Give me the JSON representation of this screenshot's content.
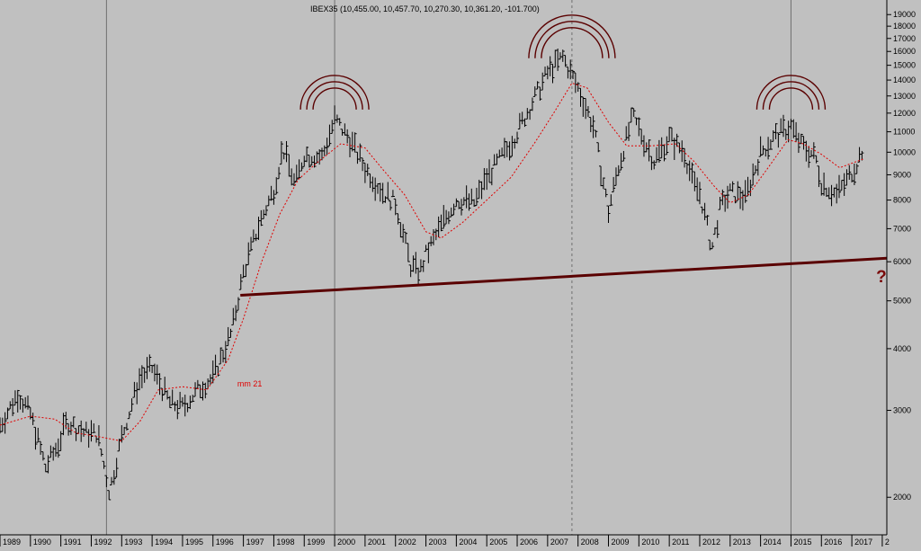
{
  "colors": {
    "background": "#c0c0c0",
    "price_bars": "#000000",
    "moving_average": "#e00000",
    "support_line": "#5a0000",
    "arcs": "#5a0000",
    "question_mark": "#7a0a0a",
    "vertical_lines": "#707070",
    "axis_text": "#000000"
  },
  "chart_data": {
    "type": "ohlc",
    "title": "IBEX35 (10,455.00, 10,457.70, 10,270.30, 10,361.20, -101.700)",
    "y_scale": "log",
    "ylim": [
      1700,
      20000
    ],
    "xlim": [
      1989.0,
      2018.15
    ],
    "x_ticks": [
      "1989",
      "1990",
      "1991",
      "1992",
      "1993",
      "1994",
      "1995",
      "1996",
      "1997",
      "1998",
      "1999",
      "2000",
      "2001",
      "2002",
      "2003",
      "2004",
      "2005",
      "2006",
      "2007",
      "2008",
      "2009",
      "2010",
      "2011",
      "2012",
      "2013",
      "2014",
      "2015",
      "2016",
      "2017",
      "2"
    ],
    "y_ticks": [
      2000,
      3000,
      4000,
      5000,
      6000,
      7000,
      8000,
      9000,
      10000,
      11000,
      12000,
      13000,
      14000,
      15000,
      16000,
      17000,
      18000,
      19000
    ],
    "y_tick_labels": [
      "2000",
      "3000",
      "4000",
      "5000",
      "6000",
      "7000",
      "8000",
      "9000",
      "10000",
      "11000",
      "12000",
      "13000",
      "14000",
      "15000",
      "16000",
      "17000",
      "18000",
      "19000"
    ],
    "series": [
      {
        "type": "ohlc",
        "anchors": [
          {
            "x": 1989.0,
            "y": 2800
          },
          {
            "x": 1989.6,
            "y": 3250
          },
          {
            "x": 1990.0,
            "y": 2950
          },
          {
            "x": 1990.5,
            "y": 2300
          },
          {
            "x": 1990.9,
            "y": 2550
          },
          {
            "x": 1991.2,
            "y": 2850
          },
          {
            "x": 1991.8,
            "y": 2700
          },
          {
            "x": 1992.2,
            "y": 2700
          },
          {
            "x": 1992.6,
            "y": 2050
          },
          {
            "x": 1993.0,
            "y": 2650
          },
          {
            "x": 1993.6,
            "y": 3500
          },
          {
            "x": 1994.0,
            "y": 3650
          },
          {
            "x": 1994.6,
            "y": 3100
          },
          {
            "x": 1995.0,
            "y": 3050
          },
          {
            "x": 1995.6,
            "y": 3350
          },
          {
            "x": 1996.0,
            "y": 3500
          },
          {
            "x": 1996.6,
            "y": 4300
          },
          {
            "x": 1997.0,
            "y": 5700
          },
          {
            "x": 1997.5,
            "y": 7100
          },
          {
            "x": 1998.0,
            "y": 8400
          },
          {
            "x": 1998.3,
            "y": 10200
          },
          {
            "x": 1998.7,
            "y": 8600
          },
          {
            "x": 1999.0,
            "y": 9900
          },
          {
            "x": 1999.6,
            "y": 9800
          },
          {
            "x": 2000.0,
            "y": 11700
          },
          {
            "x": 2000.5,
            "y": 10600
          },
          {
            "x": 2001.0,
            "y": 9300
          },
          {
            "x": 2001.6,
            "y": 8300
          },
          {
            "x": 2002.0,
            "y": 7900
          },
          {
            "x": 2002.5,
            "y": 5900
          },
          {
            "x": 2002.8,
            "y": 5700
          },
          {
            "x": 2003.0,
            "y": 6200
          },
          {
            "x": 2003.6,
            "y": 7300
          },
          {
            "x": 2004.0,
            "y": 8000
          },
          {
            "x": 2004.6,
            "y": 7900
          },
          {
            "x": 2005.0,
            "y": 8900
          },
          {
            "x": 2005.6,
            "y": 10000
          },
          {
            "x": 2006.0,
            "y": 11000
          },
          {
            "x": 2006.6,
            "y": 13000
          },
          {
            "x": 2007.0,
            "y": 14500
          },
          {
            "x": 2007.5,
            "y": 15600
          },
          {
            "x": 2008.0,
            "y": 13500
          },
          {
            "x": 2008.5,
            "y": 11300
          },
          {
            "x": 2009.0,
            "y": 7600
          },
          {
            "x": 2009.3,
            "y": 9200
          },
          {
            "x": 2009.8,
            "y": 11800
          },
          {
            "x": 2010.2,
            "y": 10500
          },
          {
            "x": 2010.5,
            "y": 9600
          },
          {
            "x": 2011.0,
            "y": 10700
          },
          {
            "x": 2011.5,
            "y": 10000
          },
          {
            "x": 2011.8,
            "y": 8600
          },
          {
            "x": 2012.0,
            "y": 8300
          },
          {
            "x": 2012.4,
            "y": 6400
          },
          {
            "x": 2012.7,
            "y": 7800
          },
          {
            "x": 2013.0,
            "y": 8300
          },
          {
            "x": 2013.5,
            "y": 8100
          },
          {
            "x": 2014.0,
            "y": 10000
          },
          {
            "x": 2014.5,
            "y": 10800
          },
          {
            "x": 2015.0,
            "y": 11300
          },
          {
            "x": 2015.3,
            "y": 10400
          },
          {
            "x": 2015.8,
            "y": 9800
          },
          {
            "x": 2016.0,
            "y": 8700
          },
          {
            "x": 2016.5,
            "y": 8200
          },
          {
            "x": 2016.9,
            "y": 8900
          },
          {
            "x": 2017.2,
            "y": 9600
          },
          {
            "x": 2017.4,
            "y": 10360
          }
        ]
      },
      {
        "name": "mm 21",
        "type": "line",
        "style": "dotted",
        "points": [
          {
            "x": 1989.0,
            "y": 2800
          },
          {
            "x": 1990.0,
            "y": 2920
          },
          {
            "x": 1990.8,
            "y": 2880
          },
          {
            "x": 1991.5,
            "y": 2700
          },
          {
            "x": 1992.3,
            "y": 2650
          },
          {
            "x": 1993.0,
            "y": 2600
          },
          {
            "x": 1993.6,
            "y": 2850
          },
          {
            "x": 1994.2,
            "y": 3300
          },
          {
            "x": 1995.0,
            "y": 3350
          },
          {
            "x": 1995.8,
            "y": 3300
          },
          {
            "x": 1996.5,
            "y": 3800
          },
          {
            "x": 1997.0,
            "y": 4600
          },
          {
            "x": 1997.6,
            "y": 6000
          },
          {
            "x": 1998.2,
            "y": 7500
          },
          {
            "x": 1998.8,
            "y": 8800
          },
          {
            "x": 1999.4,
            "y": 9500
          },
          {
            "x": 2000.2,
            "y": 10400
          },
          {
            "x": 2001.0,
            "y": 10200
          },
          {
            "x": 2001.6,
            "y": 9200
          },
          {
            "x": 2002.3,
            "y": 8200
          },
          {
            "x": 2003.0,
            "y": 6900
          },
          {
            "x": 2003.5,
            "y": 6700
          },
          {
            "x": 2004.2,
            "y": 7200
          },
          {
            "x": 2005.0,
            "y": 8000
          },
          {
            "x": 2005.8,
            "y": 8900
          },
          {
            "x": 2006.6,
            "y": 10500
          },
          {
            "x": 2007.2,
            "y": 12000
          },
          {
            "x": 2007.8,
            "y": 13800
          },
          {
            "x": 2008.3,
            "y": 13500
          },
          {
            "x": 2009.0,
            "y": 11500
          },
          {
            "x": 2009.6,
            "y": 10300
          },
          {
            "x": 2010.4,
            "y": 10300
          },
          {
            "x": 2011.2,
            "y": 10400
          },
          {
            "x": 2011.8,
            "y": 9600
          },
          {
            "x": 2012.5,
            "y": 8500
          },
          {
            "x": 2013.0,
            "y": 7900
          },
          {
            "x": 2013.6,
            "y": 8200
          },
          {
            "x": 2014.3,
            "y": 9400
          },
          {
            "x": 2014.9,
            "y": 10600
          },
          {
            "x": 2015.4,
            "y": 10400
          },
          {
            "x": 2016.0,
            "y": 9900
          },
          {
            "x": 2016.6,
            "y": 9300
          },
          {
            "x": 2017.0,
            "y": 9500
          },
          {
            "x": 2017.4,
            "y": 9700
          }
        ]
      }
    ],
    "support_line": [
      {
        "x": 1996.9,
        "y": 5130
      },
      {
        "x": 2018.15,
        "y": 6100
      }
    ],
    "vertical_lines": [
      {
        "x": 1992.5,
        "style": "solid"
      },
      {
        "x": 2000.0,
        "style": "solid"
      },
      {
        "x": 2007.8,
        "style": "dashed"
      },
      {
        "x": 2015.0,
        "style": "solid"
      }
    ],
    "arc_groups": [
      {
        "x": 2000.0,
        "y": 12200
      },
      {
        "x": 2007.8,
        "y": 15500
      },
      {
        "x": 2015.0,
        "y": 12200
      }
    ],
    "annotations": [
      {
        "text": "mm 21",
        "x": 1996.8,
        "y": 3350
      },
      {
        "text": "?",
        "x": 2017.8,
        "y": 5450
      }
    ],
    "grid": false
  }
}
